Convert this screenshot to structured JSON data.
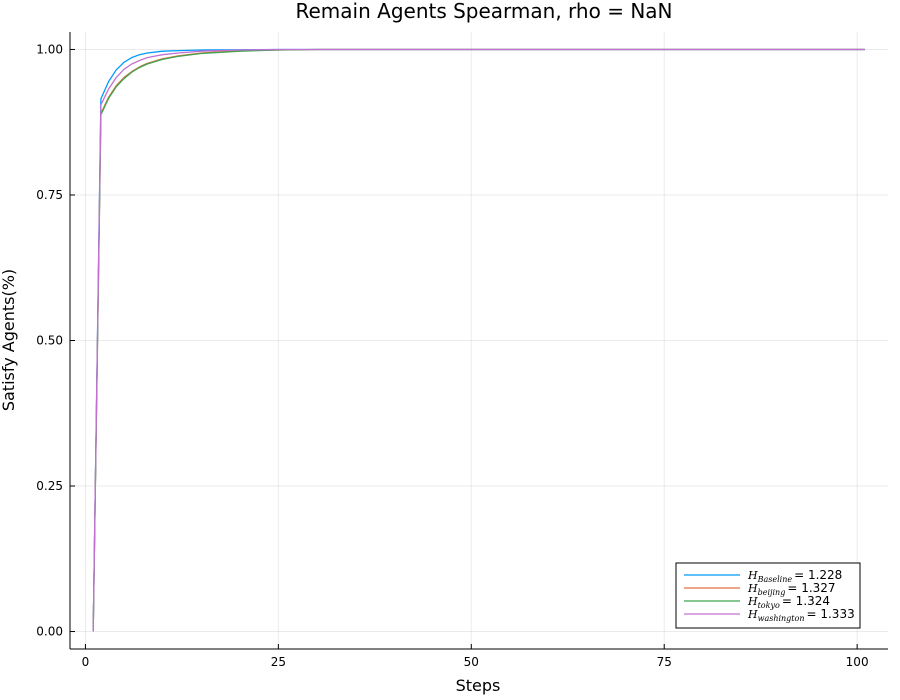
{
  "chart_data": {
    "type": "line",
    "title": "Remain Agents Spearman, rho = NaN",
    "xlabel": "Steps",
    "ylabel": "Satisfy Agents(%)",
    "xlim": [
      -2,
      104
    ],
    "ylim": [
      -0.03,
      1.03
    ],
    "xticks": [
      0,
      25,
      50,
      75,
      100
    ],
    "xtick_labels": [
      "0",
      "25",
      "50",
      "75",
      "100"
    ],
    "yticks": [
      0,
      0.25,
      0.5,
      0.75,
      1.0
    ],
    "ytick_labels": [
      "0.00",
      "0.25",
      "0.50",
      "0.75",
      "1.00"
    ],
    "grid": true,
    "legend_position": "bottom-right",
    "series": [
      {
        "name": "H_Baseline = 1.228",
        "legend_sub": "Baseline",
        "legend_value": "= 1.228",
        "color": "#009AFA",
        "x": [
          1,
          2,
          3,
          4,
          5,
          6,
          7,
          8,
          10,
          12,
          15,
          20,
          25,
          30,
          40,
          60,
          80,
          101
        ],
        "y": [
          0.0,
          0.915,
          0.945,
          0.965,
          0.978,
          0.986,
          0.991,
          0.994,
          0.997,
          0.998,
          0.999,
          0.9995,
          1.0,
          1.0,
          1.0,
          1.0,
          1.0,
          1.0
        ]
      },
      {
        "name": "H_beijing = 1.327",
        "legend_sub": "beijing",
        "legend_value": "= 1.327",
        "color": "#E36F47",
        "x": [
          1,
          2,
          3,
          4,
          5,
          6,
          7,
          8,
          10,
          12,
          15,
          20,
          25,
          30,
          40,
          60,
          80,
          101
        ],
        "y": [
          0.0,
          0.89,
          0.918,
          0.938,
          0.952,
          0.962,
          0.97,
          0.976,
          0.984,
          0.989,
          0.994,
          0.998,
          0.999,
          1.0,
          1.0,
          1.0,
          1.0,
          1.0
        ]
      },
      {
        "name": "H_tokyo = 1.324",
        "legend_sub": "tokyo",
        "legend_value": "= 1.324",
        "color": "#3EA44E",
        "x": [
          1,
          2,
          3,
          4,
          5,
          6,
          7,
          8,
          10,
          12,
          15,
          20,
          25,
          30,
          40,
          60,
          80,
          101
        ],
        "y": [
          0.0,
          0.888,
          0.916,
          0.936,
          0.95,
          0.961,
          0.969,
          0.975,
          0.983,
          0.988,
          0.993,
          0.997,
          0.999,
          1.0,
          1.0,
          1.0,
          1.0,
          1.0
        ]
      },
      {
        "name": "H_washington = 1.333",
        "legend_sub": "washington",
        "legend_value": "= 1.333",
        "color": "#C271D2",
        "x": [
          1,
          2,
          3,
          4,
          5,
          6,
          7,
          8,
          10,
          12,
          15,
          20,
          25,
          30,
          40,
          60,
          80,
          101
        ],
        "y": [
          0.0,
          0.905,
          0.932,
          0.952,
          0.966,
          0.975,
          0.981,
          0.986,
          0.991,
          0.994,
          0.997,
          0.999,
          1.0,
          1.0,
          1.0,
          1.0,
          1.0,
          1.0
        ]
      }
    ]
  }
}
